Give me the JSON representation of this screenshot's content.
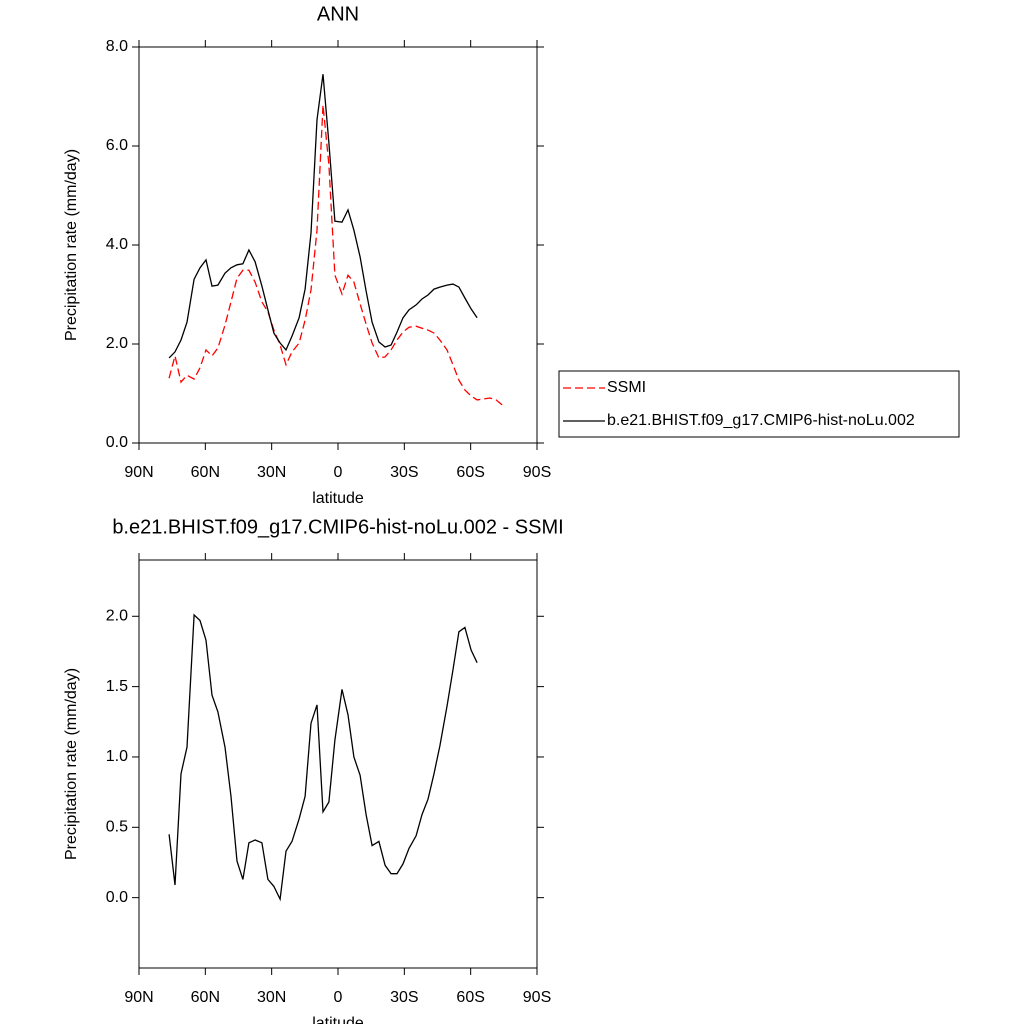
{
  "chart_data": [
    {
      "type": "line",
      "title": "ANN",
      "x_label": "latitude",
      "y_label": "Precipitation rate (mm/day)",
      "xlim": [
        90,
        -90
      ],
      "ylim": [
        0,
        8
      ],
      "xticks": [
        {
          "value": 90,
          "label": "90N"
        },
        {
          "value": 60,
          "label": "60N"
        },
        {
          "value": 30,
          "label": "30N"
        },
        0,
        {
          "value": -30,
          "label": "30S"
        },
        {
          "value": -60,
          "label": "60S"
        },
        {
          "value": -90,
          "label": "90S"
        }
      ],
      "yticks": [
        {
          "value": 0,
          "label": "0.0"
        },
        {
          "value": 2,
          "label": "2.0"
        },
        {
          "value": 4,
          "label": "4.0"
        },
        {
          "value": 6,
          "label": "6.0"
        },
        {
          "value": 8,
          "label": "8.0"
        }
      ],
      "legend": "right",
      "x": [
        76.4,
        73.7,
        71.0,
        68.3,
        65.1,
        62.4,
        59.7,
        57.0,
        54.3,
        51.1,
        48.4,
        45.7,
        43.0,
        40.3,
        37.5,
        34.4,
        31.7,
        29.0,
        26.2,
        23.5,
        20.8,
        17.6,
        14.9,
        12.2,
        9.5,
        6.8,
        4.1,
        1.4,
        -1.8,
        -4.5,
        -7.2,
        -10.0,
        -12.7,
        -15.4,
        -18.5,
        -21.3,
        -24.0,
        -26.7,
        -29.4,
        -32.1,
        -35.3,
        -38.0,
        -40.7,
        -43.4,
        -46.1,
        -49.3,
        -52.0,
        -54.7,
        -57.4,
        -60.2,
        -62.9,
        -66.0,
        -68.7,
        -71.5,
        -74.2
      ],
      "series": [
        {
          "name": "SSMI",
          "color": "#ff0000",
          "line_style": "dashed",
          "values": [
            1.31,
            1.76,
            1.23,
            1.37,
            1.29,
            1.52,
            1.88,
            1.76,
            1.92,
            2.38,
            2.85,
            3.33,
            3.49,
            3.49,
            3.25,
            2.85,
            2.65,
            2.28,
            1.98,
            1.58,
            1.84,
            2.02,
            2.48,
            3.09,
            4.3,
            6.83,
            5.62,
            3.39,
            3.01,
            3.39,
            3.25,
            2.81,
            2.4,
            2.02,
            1.72,
            1.74,
            1.88,
            2.08,
            2.24,
            2.34,
            2.36,
            2.32,
            2.28,
            2.22,
            2.08,
            1.88,
            1.58,
            1.27,
            1.07,
            0.95,
            0.87,
            0.89,
            0.91,
            0.87,
            0.77
          ]
        },
        {
          "name": "b.e21.BHIST.f09_g17.CMIP6-hist-noLu.002",
          "color": "#000000",
          "line_style": "solid",
          "values": [
            1.72,
            1.84,
            2.08,
            2.44,
            3.31,
            3.54,
            3.7,
            3.17,
            3.19,
            3.43,
            3.54,
            3.6,
            3.62,
            3.9,
            3.66,
            3.17,
            2.69,
            2.22,
            2.02,
            1.88,
            2.16,
            2.53,
            3.11,
            4.24,
            6.53,
            7.45,
            6.06,
            4.48,
            4.46,
            4.71,
            4.3,
            3.76,
            3.07,
            2.44,
            2.04,
            1.94,
            1.98,
            2.24,
            2.53,
            2.69,
            2.79,
            2.91,
            2.99,
            3.11,
            3.15,
            3.19,
            3.21,
            3.15,
            2.93,
            2.71,
            2.53,
            null,
            null,
            null,
            null
          ]
        }
      ]
    },
    {
      "type": "line",
      "title": "b.e21.BHIST.f09_g17.CMIP6-hist-noLu.002 - SSMI",
      "x_label": "latitude",
      "y_label": "Precipitation rate (mm/day)",
      "xlim": [
        90,
        -90
      ],
      "ylim": [
        -0.5,
        2.4
      ],
      "xticks": [
        {
          "value": 90,
          "label": "90N"
        },
        {
          "value": 60,
          "label": "60N"
        },
        {
          "value": 30,
          "label": "30N"
        },
        0,
        {
          "value": -30,
          "label": "30S"
        },
        {
          "value": -60,
          "label": "60S"
        },
        {
          "value": -90,
          "label": "90S"
        }
      ],
      "yticks": [
        {
          "value": 0,
          "label": "0.0"
        },
        0.5,
        {
          "value": 1,
          "label": "1.0"
        },
        1.5,
        {
          "value": 2,
          "label": "2.0"
        }
      ],
      "x": [
        76.4,
        73.7,
        71.0,
        68.3,
        65.1,
        62.4,
        59.7,
        57.0,
        54.3,
        51.1,
        48.4,
        45.7,
        43.0,
        40.3,
        37.5,
        34.4,
        31.7,
        29.0,
        26.2,
        23.5,
        20.8,
        17.6,
        14.9,
        12.2,
        9.5,
        6.8,
        4.1,
        1.4,
        -1.8,
        -4.5,
        -7.2,
        -10.0,
        -12.7,
        -15.4,
        -18.5,
        -21.3,
        -24.0,
        -26.7,
        -29.4,
        -32.1,
        -35.3,
        -38.0,
        -40.7,
        -43.4,
        -46.1,
        -49.3,
        -52.0,
        -54.7,
        -57.4,
        -60.2,
        -62.9
      ],
      "series": [
        {
          "color": "#000000",
          "line_style": "solid",
          "values": [
            0.45,
            0.09,
            0.88,
            1.07,
            2.01,
            1.97,
            1.83,
            1.44,
            1.32,
            1.07,
            0.72,
            0.26,
            0.13,
            0.39,
            0.41,
            0.39,
            0.13,
            0.08,
            -0.01,
            0.33,
            0.4,
            0.56,
            0.72,
            1.24,
            1.37,
            0.61,
            0.68,
            1.12,
            1.48,
            1.3,
            1.0,
            0.87,
            0.59,
            0.37,
            0.4,
            0.23,
            0.17,
            0.17,
            0.24,
            0.35,
            0.44,
            0.59,
            0.7,
            0.88,
            1.08,
            1.36,
            1.62,
            1.89,
            1.92,
            1.76,
            1.67
          ]
        }
      ]
    }
  ]
}
